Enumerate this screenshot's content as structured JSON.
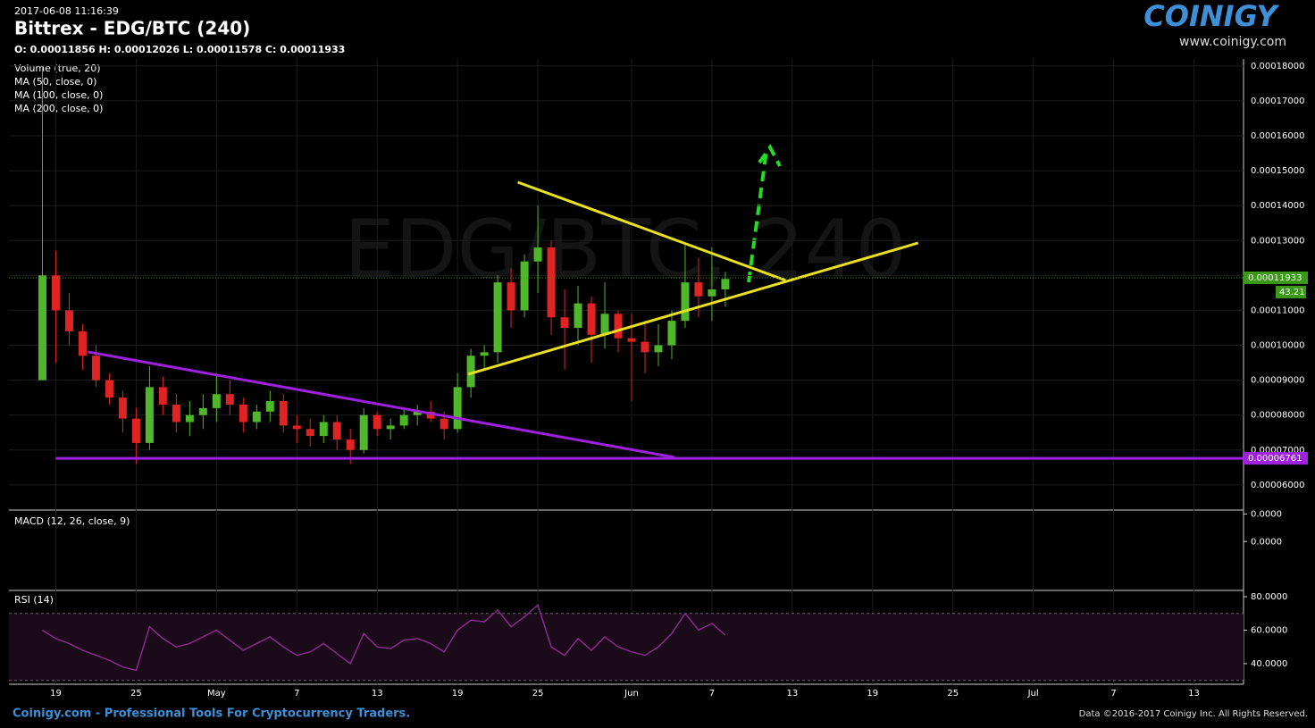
{
  "header": {
    "timestamp": "2017-06-08 11:16:39",
    "title": "Bittrex - EDG/BTC (240)",
    "ohlc": "O: 0.00011856 H: 0.00012026 L: 0.00011578 C: 0.00011933",
    "indicators": [
      "Volume (true, 20)",
      "MA (50, close, 0)",
      "MA (100, close, 0)",
      "MA (200, close, 0)"
    ],
    "watermark": "EDG/BTC, 240",
    "logo": "COINIGY",
    "site": "www.coinigy.com"
  },
  "footer": {
    "left": "Coinigy.com - Professional Tools For Cryptocurrency Traders.",
    "right": "Data ©2016-2017 Coinigy Inc. All Rights Reserved."
  },
  "chart_data": [
    {
      "type": "candlestick",
      "up_color": "#4fb82a",
      "down_color": "#e02424",
      "x": [
        0,
        1,
        2,
        3,
        4,
        5,
        6,
        7,
        8,
        9,
        10,
        11,
        12,
        13,
        14,
        15,
        16,
        17,
        18,
        19,
        20,
        21,
        22,
        23,
        24,
        25,
        26,
        27,
        28,
        29,
        30,
        31,
        32,
        33,
        34,
        35,
        36,
        37,
        38,
        39,
        40,
        41,
        42,
        43,
        44,
        45,
        46,
        47,
        48,
        49,
        50,
        51
      ],
      "open": [
        9e-05,
        0.00012,
        0.00011,
        0.000104,
        9.7e-05,
        9e-05,
        8.5e-05,
        7.9e-05,
        7.2e-05,
        8.8e-05,
        8.3e-05,
        7.8e-05,
        8e-05,
        8.2e-05,
        8.6e-05,
        8.3e-05,
        7.8e-05,
        8.1e-05,
        8.4e-05,
        7.7e-05,
        7.6e-05,
        7.4e-05,
        7.8e-05,
        7.3e-05,
        7e-05,
        8e-05,
        7.6e-05,
        7.7e-05,
        8e-05,
        8.1e-05,
        7.9e-05,
        7.6e-05,
        8.8e-05,
        9.7e-05,
        9.8e-05,
        0.000118,
        0.00011,
        0.000124,
        0.000128,
        0.000108,
        0.000105,
        0.000112,
        0.000103,
        0.000109,
        0.000102,
        0.000101,
        9.8e-05,
        0.0001,
        0.000107,
        0.000118,
        0.000114,
        0.000116
      ],
      "high": [
        0.00018,
        0.000127,
        0.000115,
        0.000106,
        0.0001,
        9.2e-05,
        8.7e-05,
        8.2e-05,
        9.4e-05,
        9.1e-05,
        8.6e-05,
        8.4e-05,
        8.6e-05,
        9.2e-05,
        9e-05,
        8.5e-05,
        8.3e-05,
        8.7e-05,
        8.6e-05,
        8e-05,
        7.9e-05,
        8e-05,
        8e-05,
        7.6e-05,
        8.2e-05,
        8.1e-05,
        7.9e-05,
        8.2e-05,
        8.3e-05,
        8.4e-05,
        8.1e-05,
        9.2e-05,
        9.9e-05,
        0.0001,
        0.00012,
        0.000122,
        0.000126,
        0.00014,
        0.00013,
        0.000116,
        0.000117,
        0.000114,
        0.000118,
        0.00011,
        0.000109,
        0.000107,
        0.000106,
        0.00011,
        0.000129,
        0.000125,
        0.000128,
        0.000121
      ],
      "low": [
        9e-05,
        9.5e-05,
        0.0001,
        9.3e-05,
        8.8e-05,
        8.3e-05,
        7.5e-05,
        6.6e-05,
        7e-05,
        8e-05,
        7.5e-05,
        7.4e-05,
        7.6e-05,
        7.8e-05,
        8e-05,
        7.5e-05,
        7.6e-05,
        7.8e-05,
        7.5e-05,
        7.2e-05,
        7.1e-05,
        7.2e-05,
        7e-05,
        6.6e-05,
        6.9e-05,
        7.4e-05,
        7.3e-05,
        7.6e-05,
        7.7e-05,
        7.8e-05,
        7.3e-05,
        7.5e-05,
        8.5e-05,
        9.3e-05,
        9.5e-05,
        0.000105,
        0.000108,
        0.000115,
        0.000103,
        9.3e-05,
        0.0001,
        9.5e-05,
        9.9e-05,
        9.8e-05,
        8.4e-05,
        9.2e-05,
        9.4e-05,
        9.6e-05,
        0.000105,
        0.000108,
        0.000107,
        0.000111
      ],
      "close": [
        0.00012,
        0.00011,
        0.000104,
        9.7e-05,
        9e-05,
        8.5e-05,
        7.9e-05,
        7.2e-05,
        8.8e-05,
        8.3e-05,
        7.8e-05,
        8e-05,
        8.2e-05,
        8.6e-05,
        8.3e-05,
        7.8e-05,
        8.1e-05,
        8.4e-05,
        7.7e-05,
        7.6e-05,
        7.4e-05,
        7.8e-05,
        7.3e-05,
        7e-05,
        8e-05,
        7.6e-05,
        7.7e-05,
        8e-05,
        8.1e-05,
        7.9e-05,
        7.6e-05,
        8.8e-05,
        9.7e-05,
        9.8e-05,
        0.000118,
        0.00011,
        0.000124,
        0.000128,
        0.000108,
        0.000105,
        0.000112,
        0.000103,
        0.000109,
        0.000102,
        0.000101,
        9.8e-05,
        0.0001,
        0.000107,
        0.000118,
        0.000114,
        0.000116,
        0.000119
      ],
      "xlim": [
        -2.5,
        89.7
      ],
      "xticks": [
        {
          "value": 1,
          "label": "19"
        },
        {
          "value": 7,
          "label": "25"
        },
        {
          "value": 13,
          "label": "May"
        },
        {
          "value": 19,
          "label": "7"
        },
        {
          "value": 25,
          "label": "13"
        },
        {
          "value": 31,
          "label": "19"
        },
        {
          "value": 37,
          "label": "25"
        },
        {
          "value": 44,
          "label": "Jun"
        },
        {
          "value": 50,
          "label": "7"
        },
        {
          "value": 56,
          "label": "13"
        },
        {
          "value": 62,
          "label": "19"
        },
        {
          "value": 68,
          "label": "25"
        },
        {
          "value": 74,
          "label": "Jul"
        },
        {
          "value": 80,
          "label": "7"
        },
        {
          "value": 86,
          "label": "13"
        }
      ],
      "ylim": [
        5.28e-05,
        0.000182
      ],
      "yticks": [
        {
          "value": 6e-05,
          "label": "0.00006000"
        },
        {
          "value": 7e-05,
          "label": "0.00007000"
        },
        {
          "value": 8e-05,
          "label": "0.00008000"
        },
        {
          "value": 9e-05,
          "label": "0.00009000"
        },
        {
          "value": 0.0001,
          "label": "0.00010000"
        },
        {
          "value": 0.00011,
          "label": "0.00011000"
        },
        {
          "value": 0.00012,
          "label": "0.00012000"
        },
        {
          "value": 0.00013,
          "label": "0.00013000"
        },
        {
          "value": 0.00014,
          "label": "0.00014000"
        },
        {
          "value": 0.00015,
          "label": "0.00015000"
        },
        {
          "value": 0.00016,
          "label": "0.00016000"
        },
        {
          "value": 0.00017,
          "label": "0.00017000"
        },
        {
          "value": 0.00018,
          "label": "0.00018000"
        }
      ],
      "last": {
        "value": 0.00011933,
        "label": "0.00011933",
        "color": "#3a9a18"
      },
      "timer": "43.21",
      "drawings": [
        {
          "color": "#e8e020",
          "x": [
            35.5,
            55.5
          ],
          "y": [
            0.0001467,
            0.0001186
          ]
        },
        {
          "color": "#e8e020",
          "x": [
            31.8,
            65.4
          ],
          "y": [
            9.17e-05,
            0.0001293
          ]
        },
        {
          "color": "#a020e0",
          "x": [
            3.4,
            47.2
          ],
          "y": [
            9.81e-05,
            6.79e-05
          ]
        },
        {
          "color": "#a020e0",
          "x": [
            1,
            89.7
          ],
          "y": [
            6.761e-05,
            6.761e-05
          ],
          "label": "0.00006761"
        }
      ]
    },
    {
      "type": "line",
      "name": "MACD (12, 26, close, 9)",
      "ylim": [
        -7.5e-06,
        4.5e-06
      ],
      "yticks": [
        {
          "value": 4.3e-06,
          "label": "0.0000"
        },
        {
          "value": 0,
          "label": "0.0000"
        }
      ]
    },
    {
      "type": "line",
      "name": "RSI (14)",
      "color": "#8a2a8a",
      "values": [
        60,
        55,
        52,
        48,
        45,
        42,
        38,
        36,
        62,
        55,
        50,
        52,
        56,
        60,
        54,
        48,
        52,
        56,
        50,
        45,
        47,
        52,
        46,
        40,
        58,
        50,
        49,
        54,
        55,
        52,
        47,
        60,
        66,
        65,
        72,
        62,
        68,
        75,
        50,
        45,
        55,
        48,
        56,
        50,
        47,
        45,
        50,
        58,
        70,
        60,
        64,
        57
      ],
      "ylim": [
        27.7,
        83.2
      ],
      "band": [
        30,
        70
      ],
      "yticks": [
        {
          "value": 80,
          "label": "80.0000"
        },
        {
          "value": 60,
          "label": "60.0000"
        },
        {
          "value": 40,
          "label": "40.0000"
        }
      ]
    }
  ]
}
